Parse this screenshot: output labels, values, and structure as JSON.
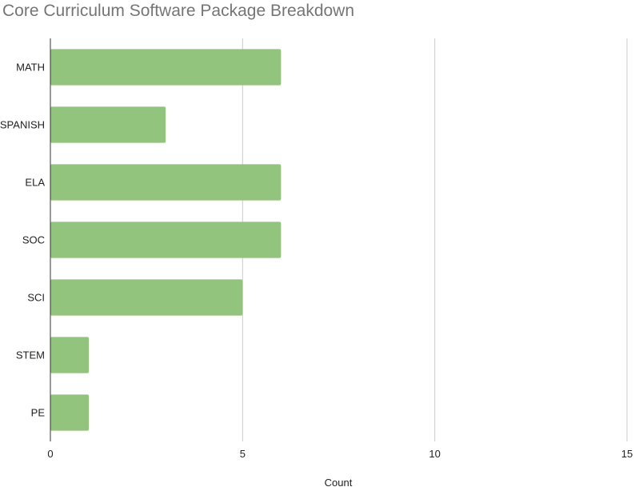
{
  "chart_data": {
    "type": "bar",
    "orientation": "horizontal",
    "title": "Core Curriculum Software Package Breakdown",
    "xlabel": "Count",
    "ylabel": "",
    "categories": [
      "MATH",
      "SPANISH",
      "ELA",
      "SOC",
      "SCI",
      "STEM",
      "PE"
    ],
    "values": [
      6,
      3,
      6,
      6,
      5,
      1,
      1
    ],
    "xlim": [
      0,
      15
    ],
    "xticks": [
      0,
      5,
      10,
      15
    ],
    "grid": true,
    "legend": "none",
    "colors": {
      "bar": "#93c47d",
      "grid": "#cccccc",
      "axis": "#333333",
      "title": "#757575"
    }
  }
}
